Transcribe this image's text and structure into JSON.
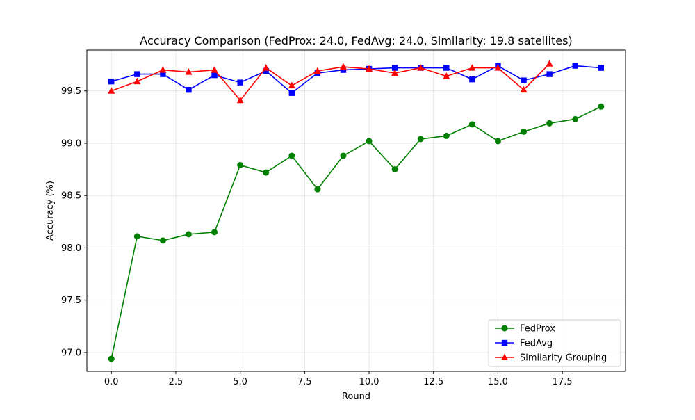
{
  "chart_data": {
    "type": "line",
    "title": "Accuracy Comparison (FedProx: 24.0, FedAvg: 24.0, Similarity: 19.8 satellites)",
    "xlabel": "Round",
    "ylabel": "Accuracy (%)",
    "xlim": [
      -0.95,
      19.95
    ],
    "ylim": [
      96.82,
      99.89
    ],
    "xticks": [
      0.0,
      2.5,
      5.0,
      7.5,
      10.0,
      12.5,
      15.0,
      17.5
    ],
    "xtick_labels": [
      "0.0",
      "2.5",
      "5.0",
      "7.5",
      "10.0",
      "12.5",
      "15.0",
      "17.5"
    ],
    "yticks": [
      97.0,
      97.5,
      98.0,
      98.5,
      99.0,
      99.5
    ],
    "ytick_labels": [
      "97.0",
      "97.5",
      "98.0",
      "98.5",
      "99.0",
      "99.5"
    ],
    "grid": true,
    "legend_position": "bottom-right",
    "series": [
      {
        "name": "FedProx",
        "color": "#008000",
        "marker": "circle",
        "x": [
          0,
          1,
          2,
          3,
          4,
          5,
          6,
          7,
          8,
          9,
          10,
          11,
          12,
          13,
          14,
          15,
          16,
          17,
          18,
          19
        ],
        "values": [
          96.94,
          98.11,
          98.07,
          98.13,
          98.15,
          98.79,
          98.72,
          98.88,
          98.56,
          98.88,
          99.02,
          98.75,
          99.04,
          99.07,
          99.18,
          99.02,
          99.11,
          99.19,
          99.23,
          99.35
        ]
      },
      {
        "name": "FedAvg",
        "color": "#0000ff",
        "marker": "square",
        "x": [
          0,
          1,
          2,
          3,
          4,
          5,
          6,
          7,
          8,
          9,
          10,
          11,
          12,
          13,
          14,
          15,
          16,
          17,
          18,
          19
        ],
        "values": [
          99.59,
          99.66,
          99.66,
          99.51,
          99.65,
          99.58,
          99.69,
          99.48,
          99.67,
          99.7,
          99.71,
          99.72,
          99.72,
          99.72,
          99.61,
          99.74,
          99.6,
          99.66,
          99.74,
          99.72
        ]
      },
      {
        "name": "Similarity Grouping",
        "color": "#ff0000",
        "marker": "triangle",
        "x": [
          0,
          1,
          2,
          3,
          4,
          5,
          6,
          7,
          8,
          9,
          10,
          11,
          12,
          13,
          14,
          15,
          16,
          17
        ],
        "values": [
          99.5,
          99.59,
          99.7,
          99.68,
          99.7,
          99.41,
          99.72,
          99.55,
          99.69,
          99.73,
          99.71,
          99.67,
          99.72,
          99.64,
          99.72,
          99.72,
          99.51,
          99.76
        ]
      }
    ]
  }
}
